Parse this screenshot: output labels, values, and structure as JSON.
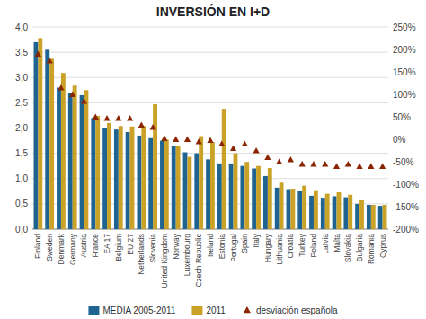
{
  "chart_data": {
    "type": "bar",
    "title": "INVERSIÓN EN I+D",
    "categories": [
      "Finland",
      "Sweden",
      "Denmark",
      "Germany",
      "Austria",
      "France",
      "EA 17",
      "Belgium",
      "EU 27",
      "Netherlands",
      "Slovenia",
      "United Kingdom",
      "Norway",
      "Luxembourg",
      "Czech Republic",
      "Ireland",
      "Estonia",
      "Portugal",
      "Spain",
      "Italy",
      "Hungary",
      "Lithuania",
      "Croatia",
      "Turkey",
      "Poland",
      "Latvia",
      "Malta",
      "Slovakia",
      "Bulgaria",
      "Romania",
      "Cyprus"
    ],
    "series": [
      {
        "name": "MEDIA 2005-2011",
        "color": "#1F6391",
        "values": [
          3.7,
          3.55,
          2.8,
          2.7,
          2.65,
          2.2,
          2.0,
          1.97,
          1.92,
          1.85,
          1.8,
          1.75,
          1.65,
          1.52,
          1.5,
          1.38,
          1.3,
          1.3,
          1.25,
          1.2,
          1.05,
          0.82,
          0.79,
          0.75,
          0.66,
          0.62,
          0.65,
          0.63,
          0.5,
          0.48,
          0.46
        ]
      },
      {
        "name": "2011",
        "color": "#C9A227",
        "values": [
          3.78,
          3.37,
          3.09,
          2.84,
          2.75,
          2.24,
          2.1,
          2.04,
          2.03,
          2.04,
          2.47,
          1.77,
          1.65,
          1.43,
          1.84,
          1.72,
          2.38,
          1.5,
          1.33,
          1.25,
          1.21,
          0.92,
          0.8,
          0.86,
          0.77,
          0.7,
          0.73,
          0.68,
          0.57,
          0.48,
          0.48
        ]
      },
      {
        "name": "desviación española",
        "color": "#8B2500",
        "type": "scatter",
        "marker": "triangle",
        "axis": "y2",
        "values": [
          190,
          175,
          115,
          100,
          85,
          50,
          47,
          47,
          47,
          32,
          27,
          2,
          0,
          0,
          -5,
          -2,
          -10,
          -20,
          -10,
          -25,
          -40,
          -50,
          -45,
          -55,
          -55,
          -55,
          -60,
          -55,
          -60,
          -60,
          -60
        ]
      }
    ],
    "ylim": [
      0,
      4.0
    ],
    "yticks": [
      {
        "value": 0.0,
        "label": "0,0"
      },
      {
        "value": 0.5,
        "label": "0,5"
      },
      {
        "value": 1.0,
        "label": "1,0"
      },
      {
        "value": 1.5,
        "label": "1,5"
      },
      {
        "value": 2.0,
        "label": "2,0"
      },
      {
        "value": 2.5,
        "label": "2,5"
      },
      {
        "value": 3.0,
        "label": "3,0"
      },
      {
        "value": 3.5,
        "label": "3,5"
      },
      {
        "value": 4.0,
        "label": "4,0"
      }
    ],
    "y2lim": [
      -200,
      250
    ],
    "y2ticks": [
      {
        "value": -200,
        "label": "-200%"
      },
      {
        "value": -150,
        "label": "-150%"
      },
      {
        "value": -100,
        "label": "-100%"
      },
      {
        "value": -50,
        "label": "-50%"
      },
      {
        "value": 0,
        "label": "0%"
      },
      {
        "value": 50,
        "label": "50%"
      },
      {
        "value": 100,
        "label": "100%"
      },
      {
        "value": 150,
        "label": "150%"
      },
      {
        "value": 200,
        "label": "200%"
      },
      {
        "value": 250,
        "label": "250%"
      }
    ],
    "grid": true,
    "legend": "bottom"
  }
}
